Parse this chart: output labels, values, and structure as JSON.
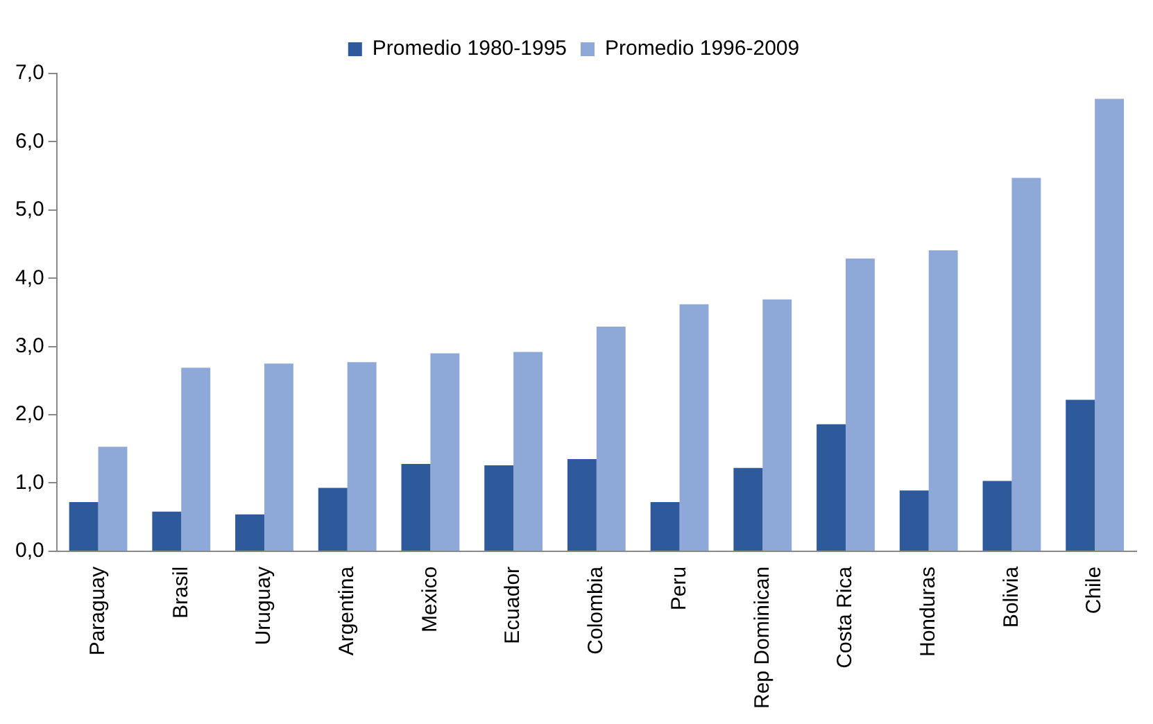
{
  "chart_data": {
    "type": "bar",
    "categories": [
      "Paraguay",
      "Brasil",
      "Uruguay",
      "Argentina",
      "Mexico",
      "Ecuador",
      "Colombia",
      "Peru",
      "Rep Dominican",
      "Costa Rica",
      "Honduras",
      "Bolivia",
      "Chile"
    ],
    "series": [
      {
        "name": "Promedio 1980-1995",
        "color": "#2e5a9c",
        "values": [
          0.72,
          0.58,
          0.54,
          0.93,
          1.28,
          1.26,
          1.35,
          0.72,
          1.22,
          1.86,
          0.89,
          1.03,
          2.22
        ]
      },
      {
        "name": "Promedio 1996-2009",
        "color": "#8ea9d8",
        "values": [
          1.53,
          2.69,
          2.75,
          2.77,
          2.9,
          2.92,
          3.29,
          3.62,
          3.69,
          4.29,
          4.41,
          5.47,
          6.63
        ]
      }
    ],
    "ylim": [
      0,
      7
    ],
    "yticks": [
      {
        "value": 0,
        "label": "0,0"
      },
      {
        "value": 1,
        "label": "1,0"
      },
      {
        "value": 2,
        "label": "2,0"
      },
      {
        "value": 3,
        "label": "3,0"
      },
      {
        "value": 4,
        "label": "4,0"
      },
      {
        "value": 5,
        "label": "5,0"
      },
      {
        "value": 6,
        "label": "6,0"
      },
      {
        "value": 7,
        "label": "7,0"
      }
    ],
    "grid": false,
    "legend": "top"
  }
}
